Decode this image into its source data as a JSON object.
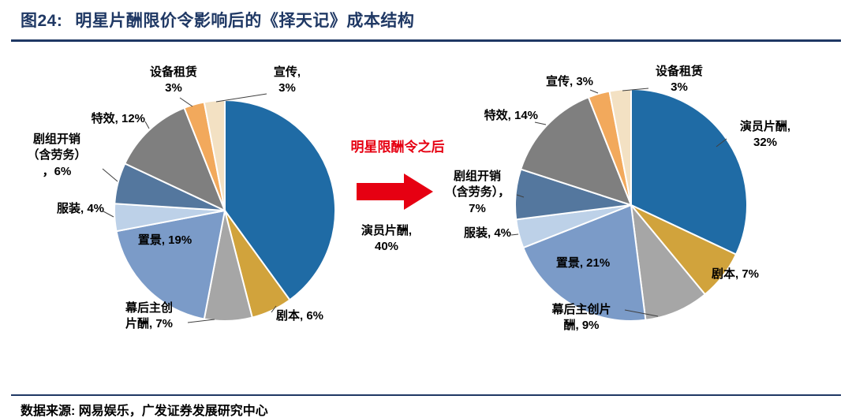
{
  "header": {
    "figure_label": "图24:",
    "title": "明星片酬限价令影响后的《择天记》成本结构"
  },
  "annotation": {
    "arrow_text": "明星限酬令之后"
  },
  "footer": {
    "source": "数据来源:  网易娱乐，广发证券发展研究中心"
  },
  "colors": {
    "accent_navy": "#1F3864",
    "red": "#E60012",
    "slice_actor": "#1F6BA5",
    "slice_script": "#D1A33C",
    "slice_creator": "#A6A6A6",
    "slice_set": "#7B9BC8",
    "slice_costume": "#BDD1E8",
    "slice_crew": "#54779E",
    "slice_vfx": "#7F7F7F",
    "slice_orange": "#F2A95C",
    "slice_cream": "#F3E1C3"
  },
  "chart_data": [
    {
      "type": "pie",
      "id": "before_limit_order",
      "layout": {
        "start": "top",
        "direction": "clockwise",
        "labels": "outside"
      },
      "slices": [
        {
          "label": "演员片酬",
          "pct": 40,
          "color": "#1F6BA5",
          "display": "演员片酬,\n40%"
        },
        {
          "label": "剧本",
          "pct": 6,
          "color": "#D1A33C",
          "display": "剧本, 6%"
        },
        {
          "label": "幕后主创片酬",
          "pct": 7,
          "color": "#A6A6A6",
          "display": "幕后主创\n片酬, 7%"
        },
        {
          "label": "置景",
          "pct": 19,
          "color": "#7B9BC8",
          "display": "置景, 19%"
        },
        {
          "label": "服装",
          "pct": 4,
          "color": "#BDD1E8",
          "display": "服装, 4%"
        },
        {
          "label": "剧组开销（含劳务）",
          "pct": 6,
          "color": "#54779E",
          "display": "剧组开销\n（含劳务）\n，6%"
        },
        {
          "label": "特效",
          "pct": 12,
          "color": "#7F7F7F",
          "display": "特效, 12%"
        },
        {
          "label": "设备租赁",
          "pct": 3,
          "color": "#F2A95C",
          "display": "设备租赁\n3%"
        },
        {
          "label": "宣传",
          "pct": 3,
          "color": "#F3E1C3",
          "display": "宣传,\n3%"
        }
      ]
    },
    {
      "type": "pie",
      "id": "after_limit_order",
      "layout": {
        "start": "top",
        "direction": "clockwise",
        "labels": "outside"
      },
      "slices": [
        {
          "label": "演员片酬",
          "pct": 32,
          "color": "#1F6BA5",
          "display": "演员片酬,\n32%"
        },
        {
          "label": "剧本",
          "pct": 7,
          "color": "#D1A33C",
          "display": "剧本, 7%"
        },
        {
          "label": "幕后主创片酬",
          "pct": 9,
          "color": "#A6A6A6",
          "display": "幕后主创片\n酬, 9%"
        },
        {
          "label": "置景",
          "pct": 21,
          "color": "#7B9BC8",
          "display": "置景, 21%"
        },
        {
          "label": "服装",
          "pct": 4,
          "color": "#BDD1E8",
          "display": "服装, 4%"
        },
        {
          "label": "剧组开销（含劳务）",
          "pct": 7,
          "color": "#54779E",
          "display": "剧组开销\n（含劳务），\n7%"
        },
        {
          "label": "特效",
          "pct": 14,
          "color": "#7F7F7F",
          "display": "特效, 14%"
        },
        {
          "label": "宣传",
          "pct": 3,
          "color": "#F2A95C",
          "display": "宣传, 3%"
        },
        {
          "label": "设备租赁",
          "pct": 3,
          "color": "#F3E1C3",
          "display": "设备租赁\n3%"
        }
      ]
    }
  ]
}
